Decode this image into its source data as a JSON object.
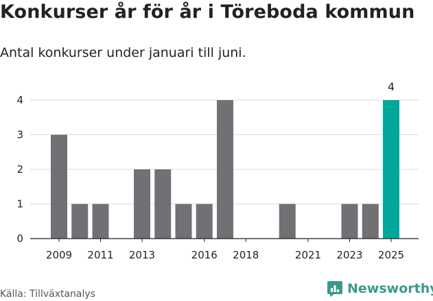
{
  "header": {
    "title": "Konkurser år för år i Töreboda kommun",
    "subtitle": "Antal konkurser under januari till juni."
  },
  "footer": {
    "source": "Källa: Tillväxtanalys",
    "brand": "Newsworthy",
    "brand_icon": "bar-chart-logo-icon"
  },
  "colors": {
    "bar": "#717075",
    "highlight": "#00a89b",
    "gridline": "#d9d9d9",
    "brand": "#3a9a8a"
  },
  "chart_data": {
    "type": "bar",
    "categories": [
      2009,
      2010,
      2011,
      2012,
      2013,
      2014,
      2015,
      2016,
      2017,
      2018,
      2019,
      2020,
      2021,
      2022,
      2023,
      2024,
      2025
    ],
    "values": [
      3,
      1,
      1,
      0,
      2,
      2,
      1,
      1,
      4,
      0,
      0,
      1,
      0,
      0,
      1,
      1,
      4
    ],
    "x_tick_labels": [
      "2009",
      "2011",
      "2013",
      "2016",
      "2018",
      "2021",
      "2023",
      "2025"
    ],
    "y_ticks": [
      0,
      1,
      2,
      3,
      4
    ],
    "ylim": [
      0,
      4
    ],
    "highlight_category": 2025,
    "data_labels": [
      {
        "category": 2025,
        "text": "4"
      }
    ],
    "grid": true,
    "legend": "none"
  }
}
